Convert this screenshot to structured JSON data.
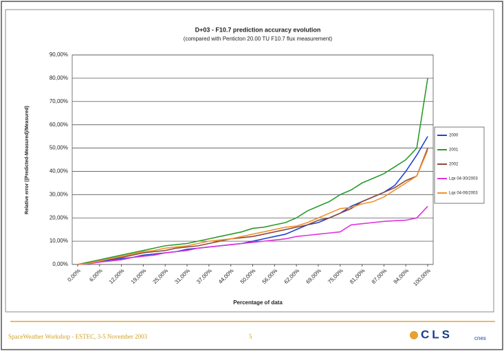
{
  "chart_data": {
    "type": "line",
    "title": "D+03 - F10.7 prediction accuracy evolution",
    "subtitle": "(compared with Penticton 20.00 TU F10.7 flux measurement)",
    "y_label": "Relative error ((Predicted-Measured)/Measured)",
    "x_label": "Percentage of data",
    "categories": [
      "0,00%",
      null,
      "6,00%",
      null,
      "12,00%",
      null,
      "19,00%",
      null,
      "25,00%",
      null,
      "31,00%",
      null,
      "37,00%",
      null,
      "44,00%",
      null,
      "50,00%",
      null,
      "56,00%",
      null,
      "62,00%",
      null,
      "69,00%",
      null,
      "75,00%",
      null,
      "81,00%",
      null,
      "87,00%",
      null,
      "94,00%",
      null,
      "100,00%"
    ],
    "ylim": [
      0,
      90
    ],
    "yticks": [
      {
        "value": 0,
        "label": "0,00%"
      },
      {
        "value": 10,
        "label": "10,00%"
      },
      {
        "value": 20,
        "label": "20,00%"
      },
      {
        "value": 30,
        "label": "30,00%"
      },
      {
        "value": 40,
        "label": "40,00%"
      },
      {
        "value": 50,
        "label": "50,00%"
      },
      {
        "value": 60,
        "label": "60,00%"
      },
      {
        "value": 70,
        "label": "70,00%"
      },
      {
        "value": 80,
        "label": "80,00%"
      },
      {
        "value": 90,
        "label": "90,00%"
      }
    ],
    "grid": true,
    "legend": "right",
    "series": [
      {
        "name": "2000",
        "color": "#2040d0",
        "values": [
          0,
          0.5,
          1,
          2,
          2.5,
          3,
          4,
          4.5,
          5,
          5.5,
          6.5,
          7,
          7.5,
          8,
          8.5,
          9,
          10,
          11,
          12,
          13,
          15,
          17,
          18,
          20,
          22,
          25,
          27,
          29,
          31,
          34,
          40,
          47,
          55
        ]
      },
      {
        "name": "2001",
        "color": "#2a9a2a",
        "values": [
          0,
          1,
          2,
          3,
          4,
          5,
          6,
          7,
          8,
          8.5,
          9,
          10,
          11,
          12,
          13,
          14,
          15.5,
          16,
          17,
          18,
          20,
          23,
          25,
          27,
          30,
          32,
          35,
          37,
          39,
          42,
          45,
          50,
          80
        ]
      },
      {
        "name": "2002",
        "color": "#8a4a3a",
        "values": [
          0,
          0.5,
          1.5,
          2.5,
          3,
          4,
          5,
          5.5,
          6,
          7,
          7.5,
          8,
          9,
          10,
          11,
          11.5,
          12,
          13,
          14,
          15,
          16,
          17,
          19,
          20,
          22,
          24,
          27,
          29,
          31,
          33,
          36,
          38,
          50
        ]
      },
      {
        "name": "Lqx 04-30/2003",
        "color": "#e030e0",
        "values": [
          0,
          0.3,
          1,
          1.5,
          2,
          3,
          3.5,
          4,
          5,
          5.5,
          6,
          7,
          7.5,
          8,
          8.5,
          9,
          9.5,
          10,
          10.5,
          11,
          12,
          12.5,
          13,
          13.5,
          14,
          17,
          17.5,
          18,
          18.5,
          18.8,
          19,
          20,
          25
        ]
      },
      {
        "name": "Lqx 04-06/2003",
        "color": "#f0902a",
        "values": [
          0,
          0.5,
          1.5,
          2.5,
          3.5,
          4.5,
          5.5,
          6,
          7,
          7.5,
          8,
          9,
          10,
          10.5,
          11,
          12,
          13,
          14,
          15,
          16,
          16.5,
          18,
          20,
          22,
          24,
          24.5,
          26,
          27,
          29,
          32,
          35,
          38,
          49
        ]
      }
    ]
  },
  "footer": {
    "text": "SpaceWeather Workshop - ESTEC, 3-5 November 2003",
    "page": "5",
    "logos": [
      "CLS",
      "cnes"
    ]
  }
}
